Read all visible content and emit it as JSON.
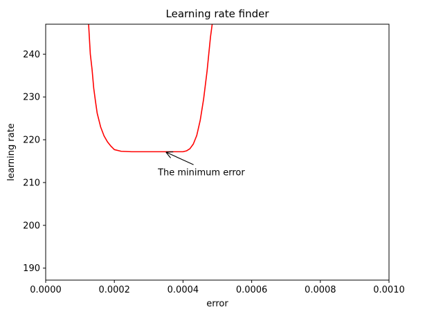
{
  "chart_data": {
    "type": "line",
    "title": "Learning rate finder",
    "xlabel": "error",
    "ylabel": "learning rate",
    "xlim": [
      0.0,
      0.001
    ],
    "ylim": [
      187.2,
      247.0
    ],
    "x_ticks": [
      0.0,
      0.0002,
      0.0004,
      0.0006,
      0.0008,
      0.001
    ],
    "x_tick_labels": [
      "0.0000",
      "0.0002",
      "0.0004",
      "0.0006",
      "0.0008",
      "0.0010"
    ],
    "y_ticks": [
      190,
      200,
      210,
      220,
      230,
      240
    ],
    "y_tick_labels": [
      "190",
      "200",
      "210",
      "220",
      "230",
      "240"
    ],
    "grid": false,
    "series": [
      {
        "color": "#ff0000",
        "x": [
          0.000125,
          0.00013,
          0.000135,
          0.00014,
          0.000145,
          0.00015,
          0.00016,
          0.00017,
          0.00018,
          0.00019,
          0.0002,
          0.00022,
          0.00025,
          0.0003,
          0.00035,
          0.0004,
          0.00041,
          0.00042,
          0.00043,
          0.00044,
          0.00045,
          0.00046,
          0.00047,
          0.000475,
          0.00048,
          0.000485
        ],
        "y": [
          247.0,
          240.0,
          236.5,
          232.0,
          229.0,
          226.2,
          223.0,
          220.9,
          219.5,
          218.5,
          217.7,
          217.3,
          217.2,
          217.2,
          217.2,
          217.2,
          217.4,
          217.9,
          219.0,
          221.0,
          224.5,
          229.5,
          236.0,
          240.0,
          244.0,
          247.0
        ]
      }
    ],
    "annotations": [
      {
        "text": "The minimum error",
        "x": 0.000355,
        "y": 212.4,
        "arrow_to": [
          0.00035,
          217.2
        ]
      }
    ]
  }
}
